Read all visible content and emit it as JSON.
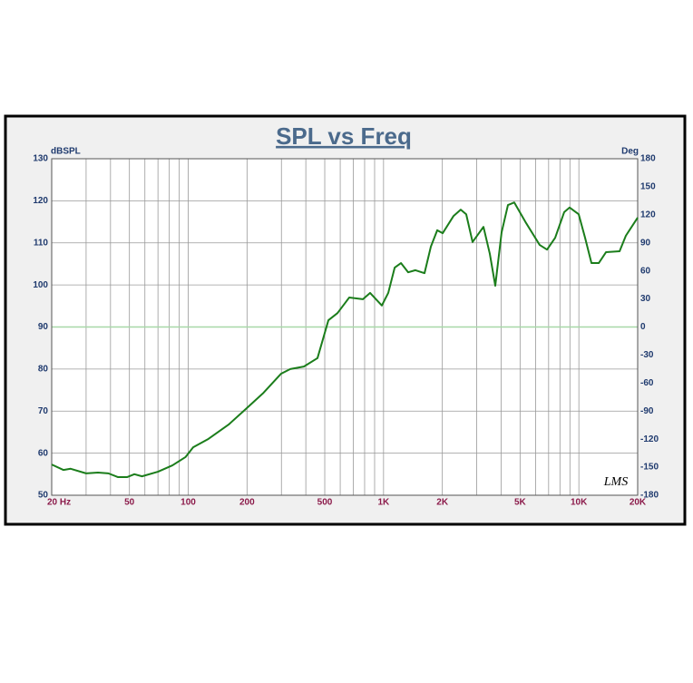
{
  "chart_data": {
    "type": "line",
    "title": "SPL vs Freq",
    "ylabel": "dBSPL",
    "y2label": "Deg",
    "annotation": "LMS",
    "log_x": true,
    "grid": true,
    "color": "#1b7d1b",
    "x": [
      20,
      23,
      25,
      30,
      34.5,
      39,
      43.7,
      48.6,
      53,
      58,
      70,
      83,
      97,
      106,
      127,
      161,
      195,
      241,
      299,
      333,
      391,
      459,
      522,
      581,
      667,
      784,
      853,
      980,
      1057,
      1140,
      1228,
      1337,
      1456,
      1621,
      1747,
      1883,
      2008,
      2283,
      2484,
      2650,
      2856,
      3248,
      3500,
      3733,
      4022,
      4335,
      4670,
      5370,
      6300,
      6870,
      7560,
      8410,
      8970,
      9980,
      10760,
      11600,
      12640,
      13780,
      16160,
      17400,
      20000
    ],
    "values": [
      57.3,
      56.0,
      56.3,
      55.2,
      55.4,
      55.2,
      54.3,
      54.3,
      55.0,
      54.5,
      55.6,
      57.1,
      59.1,
      61.4,
      63.4,
      66.8,
      70.3,
      74.2,
      78.9,
      80.0,
      80.6,
      82.6,
      91.6,
      93.3,
      97.0,
      96.6,
      98.1,
      95.1,
      98.1,
      104.1,
      105.2,
      103.0,
      103.5,
      102.8,
      109.1,
      113.0,
      112.3,
      116.4,
      117.9,
      116.8,
      110.2,
      113.8,
      107.4,
      99.8,
      112.5,
      119.0,
      119.6,
      114.7,
      109.5,
      108.4,
      111.2,
      117.3,
      118.4,
      116.8,
      111.2,
      105.2,
      105.2,
      107.8,
      108.0,
      111.7,
      116.0
    ],
    "xlim": [
      20,
      20000
    ],
    "xticks": [
      {
        "value": 20,
        "label": "20 Hz"
      },
      50,
      100,
      200,
      500,
      {
        "value": 1000,
        "label": "1K"
      },
      {
        "value": 2000,
        "label": "2K"
      },
      {
        "value": 5000,
        "label": "5K"
      },
      {
        "value": 10000,
        "label": "10K"
      },
      {
        "value": 20000,
        "label": "20K"
      }
    ],
    "xminorticks": [
      30,
      40,
      60,
      70,
      80,
      90,
      300,
      400,
      600,
      700,
      800,
      900,
      3000,
      4000,
      6000,
      7000,
      8000,
      9000
    ],
    "ylim": [
      50,
      130
    ],
    "yticks": [
      50,
      60,
      70,
      80,
      90,
      100,
      110,
      120,
      130
    ],
    "y2lim": [
      -180,
      180
    ],
    "y2ticks": [
      -180,
      -150,
      -120,
      -90,
      -60,
      -30,
      0,
      30,
      60,
      90,
      120,
      150,
      180
    ],
    "hline": {
      "axis": "y2",
      "value": 0,
      "color": "#a8d8a8"
    }
  }
}
